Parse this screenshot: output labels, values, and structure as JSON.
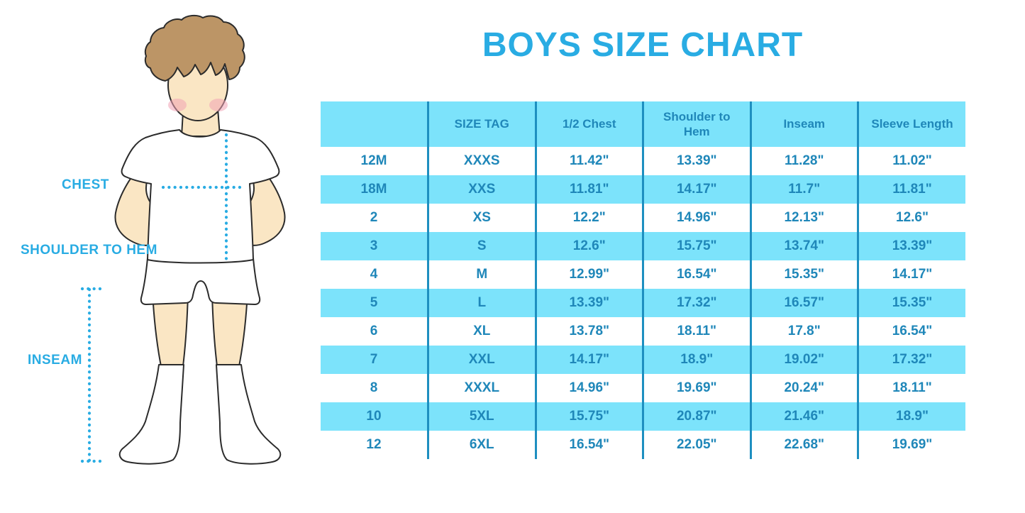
{
  "chart_data": {
    "type": "table",
    "title": "BOYS SIZE CHART",
    "columns": [
      "",
      "SIZE TAG",
      "1/2 Chest",
      "Shoulder to Hem",
      "Inseam",
      "Sleeve Length"
    ],
    "rows": [
      [
        "12M",
        "XXXS",
        "11.42\"",
        "13.39\"",
        "11.28\"",
        "11.02\""
      ],
      [
        "18M",
        "XXS",
        "11.81\"",
        "14.17\"",
        "11.7\"",
        "11.81\""
      ],
      [
        "2",
        "XS",
        "12.2\"",
        "14.96\"",
        "12.13\"",
        "12.6\""
      ],
      [
        "3",
        "S",
        "12.6\"",
        "15.75\"",
        "13.74\"",
        "13.39\""
      ],
      [
        "4",
        "M",
        "12.99\"",
        "16.54\"",
        "15.35\"",
        "14.17\""
      ],
      [
        "5",
        "L",
        "13.39\"",
        "17.32\"",
        "16.57\"",
        "15.35\""
      ],
      [
        "6",
        "XL",
        "13.78\"",
        "18.11\"",
        "17.8\"",
        "16.54\""
      ],
      [
        "7",
        "XXL",
        "14.17\"",
        "18.9\"",
        "19.02\"",
        "17.32\""
      ],
      [
        "8",
        "XXXL",
        "14.96\"",
        "19.69\"",
        "20.24\"",
        "18.11\""
      ],
      [
        "10",
        "5XL",
        "15.75\"",
        "20.87\"",
        "21.46\"",
        "18.9\""
      ],
      [
        "12",
        "6XL",
        "16.54\"",
        "22.05\"",
        "22.68\"",
        "19.69\""
      ]
    ],
    "layout": {
      "header_background": "#7ce3fb",
      "stripe_background": "#7ce3fb",
      "row_background": "#ffffff",
      "column_divider_color": "#1e8fc0",
      "text_color": "#1f87b9"
    }
  },
  "figure": {
    "labels": {
      "chest": "CHEST",
      "shoulder_to_hem": "SHOULDER TO HEM",
      "inseam": "INSEAM"
    },
    "measure_line_color": "#29ace3"
  },
  "colors": {
    "title_blue": "#29ace3",
    "table_text_blue": "#1f87b9",
    "row_cyan": "#7ce3fb",
    "divider_blue": "#1e8fc0",
    "skin": "#fae6c4",
    "hair_brown": "#bc9566"
  }
}
